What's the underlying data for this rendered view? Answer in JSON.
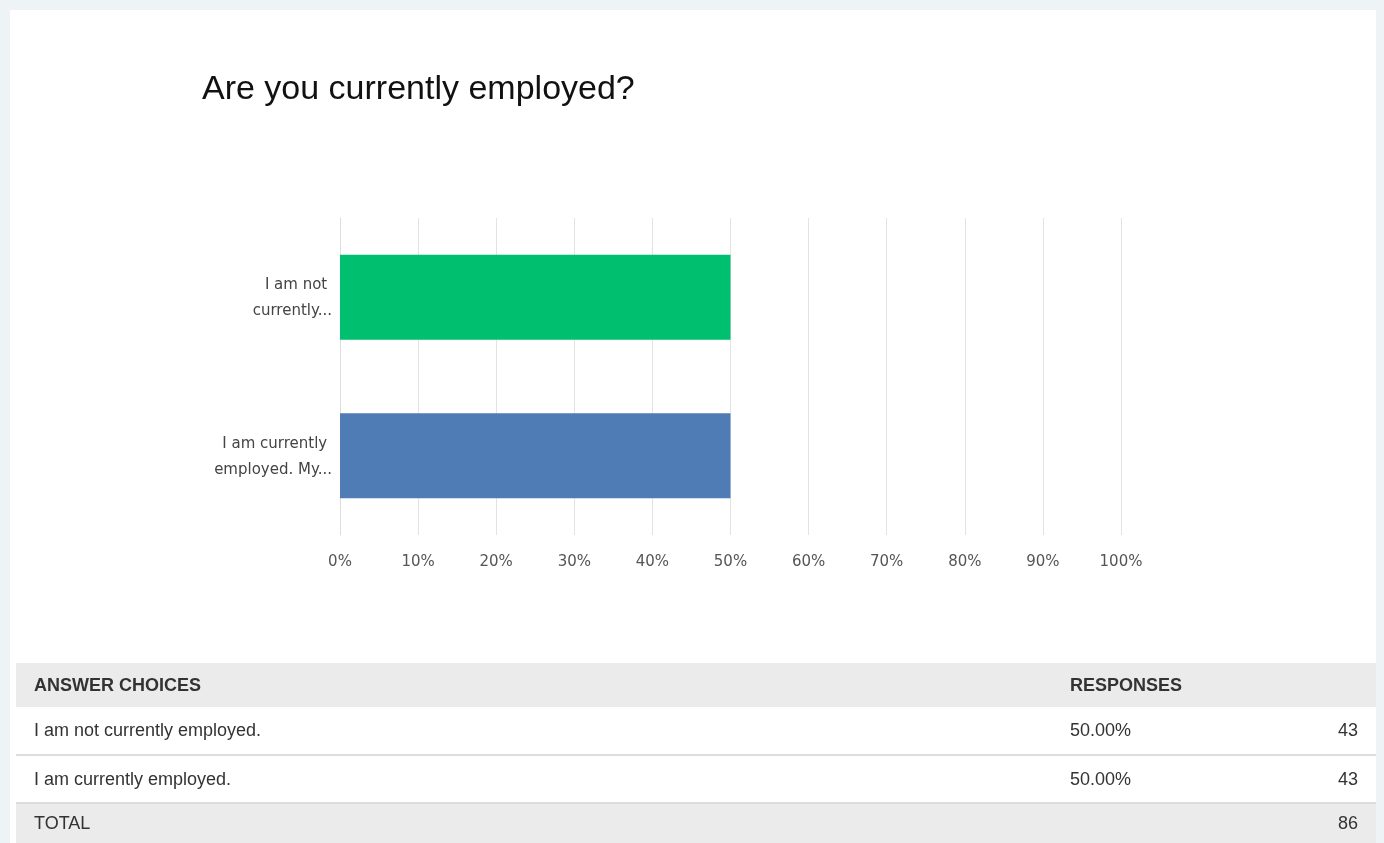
{
  "chart_data": {
    "type": "bar",
    "orientation": "horizontal",
    "title": "Are you currently employed?",
    "categories": [
      "I am not currently...",
      "I am currently employed. My..."
    ],
    "values": [
      50,
      50
    ],
    "colors": [
      "#00bf6f",
      "#507cb6"
    ],
    "xlim": [
      0,
      100
    ],
    "xticks": [
      {
        "value": 0,
        "label": "0%"
      },
      {
        "value": 10,
        "label": "10%"
      },
      {
        "value": 20,
        "label": "20%"
      },
      {
        "value": 30,
        "label": "30%"
      },
      {
        "value": 40,
        "label": "40%"
      },
      {
        "value": 50,
        "label": "50%"
      },
      {
        "value": 60,
        "label": "60%"
      },
      {
        "value": 70,
        "label": "70%"
      },
      {
        "value": 80,
        "label": "80%"
      },
      {
        "value": 90,
        "label": "90%"
      },
      {
        "value": 100,
        "label": "100%"
      }
    ],
    "grid": "x",
    "annotations": [
      "ANSWER CHOICES",
      "RESPONSES",
      "I am not currently employed.",
      "50.00%",
      "43",
      "I am currently employed.",
      "50.00%",
      "43",
      "TOTAL",
      "86"
    ]
  }
}
